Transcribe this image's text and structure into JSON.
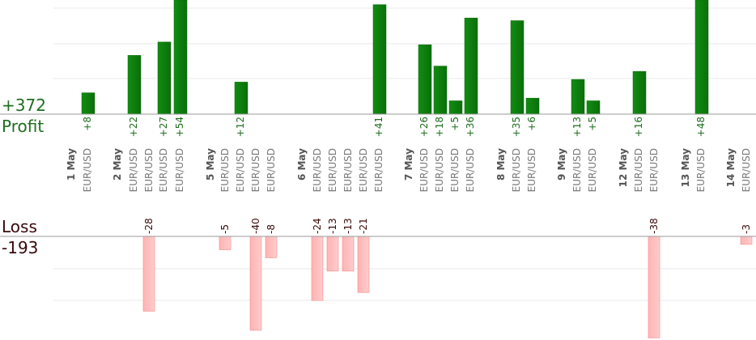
{
  "chart_data": {
    "type": "bar",
    "summary": {
      "profit_total": "+372",
      "profit_label": "Profit",
      "loss_label": "Loss",
      "loss_total": "-193"
    },
    "days": [
      {
        "label": "1 May"
      },
      {
        "label": "2 May"
      },
      {
        "label": "5 May"
      },
      {
        "label": "6 May"
      },
      {
        "label": "7 May"
      },
      {
        "label": "8 May"
      },
      {
        "label": "9 May"
      },
      {
        "label": "12 May"
      },
      {
        "label": "13 May"
      },
      {
        "label": "14 May"
      }
    ],
    "trades": [
      {
        "day": "1 May",
        "pair": "EUR/USD",
        "value": 8
      },
      {
        "day": "2 May",
        "pair": "EUR/USD",
        "value": 22
      },
      {
        "day": "2 May",
        "pair": "EUR/USD",
        "value": -28
      },
      {
        "day": "2 May",
        "pair": "EUR/USD",
        "value": 27
      },
      {
        "day": "2 May",
        "pair": "EUR/USD",
        "value": 54
      },
      {
        "day": "5 May",
        "pair": "EUR/USD",
        "value": -5
      },
      {
        "day": "5 May",
        "pair": "EUR/USD",
        "value": 12
      },
      {
        "day": "5 May",
        "pair": "EUR/USD",
        "value": -40
      },
      {
        "day": "5 May",
        "pair": "EUR/USD",
        "value": -8
      },
      {
        "day": "6 May",
        "pair": "EUR/USD",
        "value": -24
      },
      {
        "day": "6 May",
        "pair": "EUR/USD",
        "value": -13
      },
      {
        "day": "6 May",
        "pair": "EUR/USD",
        "value": -13
      },
      {
        "day": "6 May",
        "pair": "EUR/USD",
        "value": -21
      },
      {
        "day": "6 May",
        "pair": "EUR/USD",
        "value": 41
      },
      {
        "day": "7 May",
        "pair": "EUR/USD",
        "value": 26
      },
      {
        "day": "7 May",
        "pair": "EUR/USD",
        "value": 18
      },
      {
        "day": "7 May",
        "pair": "EUR/USD",
        "value": 5
      },
      {
        "day": "7 May",
        "pair": "EUR/USD",
        "value": 36
      },
      {
        "day": "8 May",
        "pair": "EUR/USD",
        "value": 35
      },
      {
        "day": "8 May",
        "pair": "EUR/USD",
        "value": 6
      },
      {
        "day": "9 May",
        "pair": "EUR/USD",
        "value": 13
      },
      {
        "day": "9 May",
        "pair": "EUR/USD",
        "value": 5
      },
      {
        "day": "12 May",
        "pair": "EUR/USD",
        "value": 16
      },
      {
        "day": "12 May",
        "pair": "EUR/USD",
        "value": -38
      },
      {
        "day": "13 May",
        "pair": "EUR/USD",
        "value": 48
      },
      {
        "day": "14 May",
        "pair": "EUR/USD",
        "value": -3
      }
    ],
    "colors": {
      "profit_bar": "#0b6e0b",
      "profit_bar_light": "#118d11",
      "loss_bar": "#ffb3b3",
      "loss_bar_edge": "#f48a8a",
      "profit_text": "#1f6e1f",
      "loss_text": "#3a0a0a",
      "label_text": "#7a7a7a",
      "day_text": "#555555",
      "gridline": "#e8e8e8",
      "baseline": "#9a9a9a"
    },
    "grid": true
  }
}
